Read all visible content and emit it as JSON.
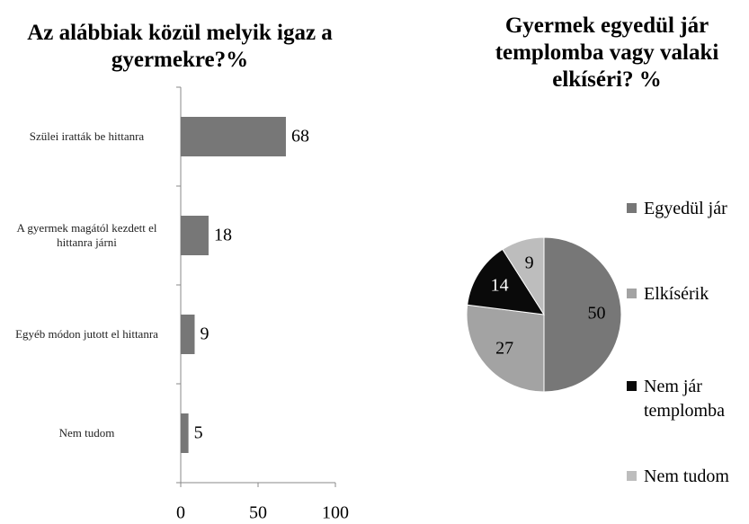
{
  "chart_data": [
    {
      "type": "hbar",
      "title": "Az alábbiak közül melyik igaz a gyermekre?%",
      "categories": [
        "Szülei iratták be hittanra",
        "A gyermek magától kezdett el hittanra járni",
        "Egyéb módon jutott el hittanra",
        "Nem tudom"
      ],
      "values": [
        68,
        18,
        9,
        5
      ],
      "color": "#777777",
      "xlim": [
        0,
        100
      ],
      "xticks": [
        0,
        50,
        100
      ]
    },
    {
      "type": "pie",
      "title": "Gyermek egyedül jár templomba vagy valaki elkíséri? %",
      "categories": [
        "Egyedül jár",
        "Elkísérik",
        "Nem jár templomba",
        "Nem tudom"
      ],
      "values": [
        50,
        27,
        14,
        9
      ],
      "colors": [
        "#777777",
        "#a3a3a3",
        "#0a0a0a",
        "#bdbdbd"
      ],
      "label_colors": [
        "#000000",
        "#000000",
        "#ffffff",
        "#000000"
      ],
      "legend": "right"
    }
  ]
}
